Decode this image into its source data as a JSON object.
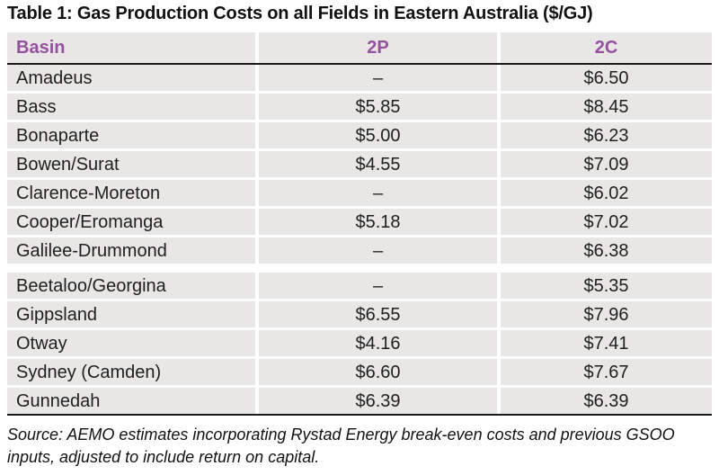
{
  "colors": {
    "accent": "#94519f",
    "row_bg": "#e9e7e5",
    "rule": "#1a1a1a",
    "page_bg": "#ffffff"
  },
  "chart_data": {
    "type": "table",
    "title": "Table 1: Gas Production Costs on all Fields in Eastern Australia ($/GJ)",
    "units": "$/GJ",
    "columns": [
      "Basin",
      "2P",
      "2C"
    ],
    "rows": [
      [
        "Amadeus",
        "–",
        "$6.50"
      ],
      [
        "Bass",
        "$5.85",
        "$8.45"
      ],
      [
        "Bonaparte",
        "$5.00",
        "$6.23"
      ],
      [
        "Bowen/Surat",
        "$4.55",
        "$7.09"
      ],
      [
        "Clarence-Moreton",
        "–",
        "$6.02"
      ],
      [
        "Cooper/Eromanga",
        "$5.18",
        "$7.02"
      ],
      [
        "Galilee-Drummond",
        "–",
        "$6.38"
      ],
      [
        "Beetaloo/Georgina",
        "–",
        "$5.35"
      ],
      [
        "Gippsland",
        "$6.55",
        "$7.96"
      ],
      [
        "Otway",
        "$4.16",
        "$7.41"
      ],
      [
        "Sydney (Camden)",
        "$6.60",
        "$7.67"
      ],
      [
        "Gunnedah",
        "$6.39",
        "$6.39"
      ]
    ],
    "group_break_before": 7,
    "source_note": "Source: AEMO estimates incorporating Rystad Energy break-even costs and previous GSOO inputs, adjusted to include return on capital."
  },
  "footer": {
    "lines": [
      "Source: AEMO estimates incorporating Rystad Energy break-even costs and previous GSOO",
      "inputs, adjusted to include return on capital."
    ]
  }
}
